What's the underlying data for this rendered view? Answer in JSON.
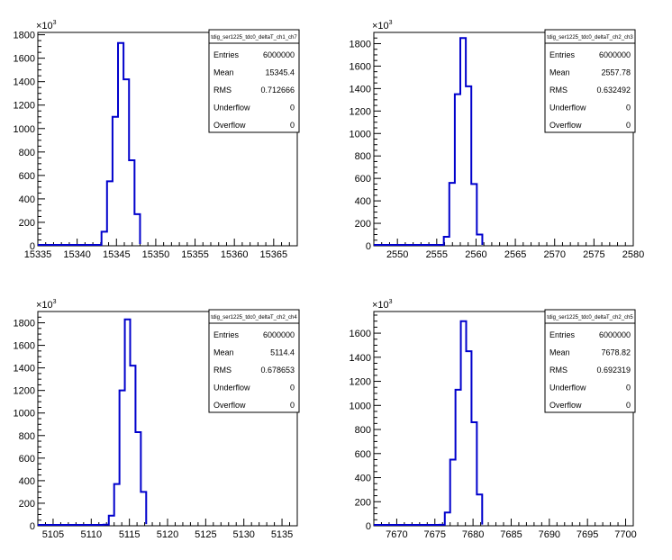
{
  "chart_data": [
    {
      "type": "histogram",
      "title": "tdig_ser1225_tdc0_deltaT_ch1_ch7",
      "y_multiplier_label": "×10",
      "y_multiplier_exp": "3",
      "xlim": [
        15335,
        15368
      ],
      "ylim": [
        0,
        1820
      ],
      "x_ticks": [
        15335,
        15340,
        15345,
        15350,
        15355,
        15360,
        15365
      ],
      "y_ticks": [
        0,
        200,
        400,
        600,
        800,
        1000,
        1200,
        1400,
        1600,
        1800
      ],
      "bin_edges": [
        15342.4,
        15343.1,
        15343.8,
        15344.5,
        15345.2,
        15345.9,
        15346.6,
        15347.3,
        15348.0
      ],
      "values": [
        8,
        120,
        550,
        1100,
        1730,
        1420,
        730,
        270,
        15
      ],
      "color": "#0000cc",
      "stats": {
        "entries": "6000000",
        "mean": "15345.4",
        "rms": "0.712666",
        "underflow": "0",
        "overflow": "0"
      }
    },
    {
      "type": "histogram",
      "title": "tdig_ser1225_tdc0_deltaT_ch2_ch3",
      "y_multiplier_label": "×10",
      "y_multiplier_exp": "3",
      "xlim": [
        2547,
        2580
      ],
      "ylim": [
        0,
        1900
      ],
      "x_ticks": [
        2550,
        2555,
        2560,
        2565,
        2570,
        2575,
        2580
      ],
      "y_ticks": [
        0,
        200,
        400,
        600,
        800,
        1000,
        1200,
        1400,
        1600,
        1800
      ],
      "bin_edges": [
        2555.2,
        2555.9,
        2556.6,
        2557.3,
        2558.0,
        2558.7,
        2559.4,
        2560.1,
        2560.8
      ],
      "values": [
        8,
        80,
        560,
        1350,
        1850,
        1420,
        550,
        100,
        6
      ],
      "color": "#0000cc",
      "stats": {
        "entries": "6000000",
        "mean": "2557.78",
        "rms": "0.632492",
        "underflow": "0",
        "overflow": "0"
      }
    },
    {
      "type": "histogram",
      "title": "tdig_ser1225_tdc0_deltaT_ch2_ch4",
      "y_multiplier_label": "×10",
      "y_multiplier_exp": "3",
      "xlim": [
        5103,
        5137
      ],
      "ylim": [
        0,
        1900
      ],
      "x_ticks": [
        5105,
        5110,
        5115,
        5120,
        5125,
        5130,
        5135
      ],
      "y_ticks": [
        0,
        200,
        400,
        600,
        800,
        1000,
        1200,
        1400,
        1600,
        1800
      ],
      "bin_edges": [
        5111.6,
        5112.3,
        5113.0,
        5113.7,
        5114.4,
        5115.1,
        5115.8,
        5116.5,
        5117.2
      ],
      "values": [
        10,
        90,
        370,
        1200,
        1830,
        1420,
        830,
        300,
        15
      ],
      "color": "#0000cc",
      "stats": {
        "entries": "6000000",
        "mean": "5114.4",
        "rms": "0.678653",
        "underflow": "0",
        "overflow": "0"
      }
    },
    {
      "type": "histogram",
      "title": "tdig_ser1225_tdc0_deltaT_ch2_ch5",
      "y_multiplier_label": "×10",
      "y_multiplier_exp": "3",
      "xlim": [
        7667,
        7701
      ],
      "ylim": [
        0,
        1780
      ],
      "x_ticks": [
        7670,
        7675,
        7680,
        7685,
        7690,
        7695,
        7700
      ],
      "y_ticks": [
        0,
        200,
        400,
        600,
        800,
        1000,
        1200,
        1400,
        1600
      ],
      "bin_edges": [
        7675.6,
        7676.3,
        7677.0,
        7677.7,
        7678.4,
        7679.1,
        7679.8,
        7680.5,
        7681.2
      ],
      "values": [
        8,
        110,
        550,
        1130,
        1700,
        1450,
        860,
        260,
        10
      ],
      "color": "#0000cc",
      "stats": {
        "entries": "6000000",
        "mean": "7678.82",
        "rms": "0.692319",
        "underflow": "0",
        "overflow": "0"
      }
    }
  ],
  "stats_labels": {
    "entries": "Entries",
    "mean": "Mean",
    "rms": "RMS",
    "underflow": "Underflow",
    "overflow": "Overflow"
  }
}
